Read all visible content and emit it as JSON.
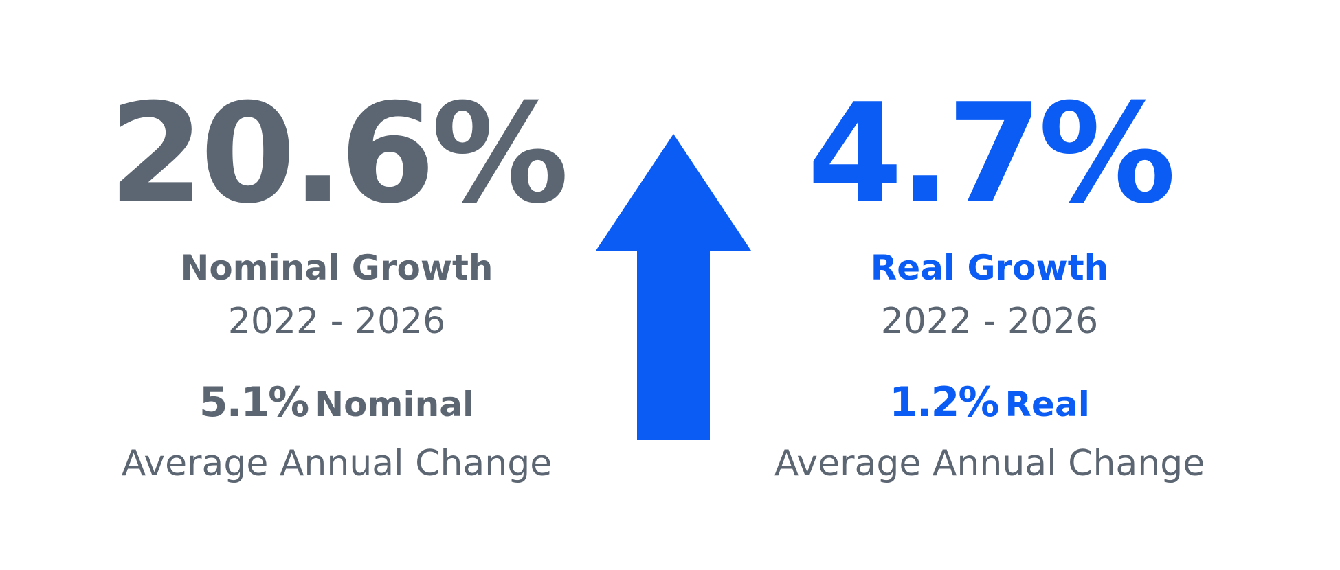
{
  "colors": {
    "nominal": "#5c6672",
    "real": "#0a5cf5",
    "arrow": "#0a5cf5"
  },
  "icons": {
    "center": "up-arrow-icon"
  },
  "nominal": {
    "value": "20.6%",
    "label": "Nominal Growth",
    "period": "2022 - 2026",
    "avg_value": "5.1%",
    "avg_kind": "Nominal",
    "avg_desc": "Average Annual Change"
  },
  "real": {
    "value": "4.7%",
    "label": "Real Growth",
    "period": "2022 - 2026",
    "avg_value": "1.2%",
    "avg_kind": "Real",
    "avg_desc": "Average Annual Change"
  }
}
